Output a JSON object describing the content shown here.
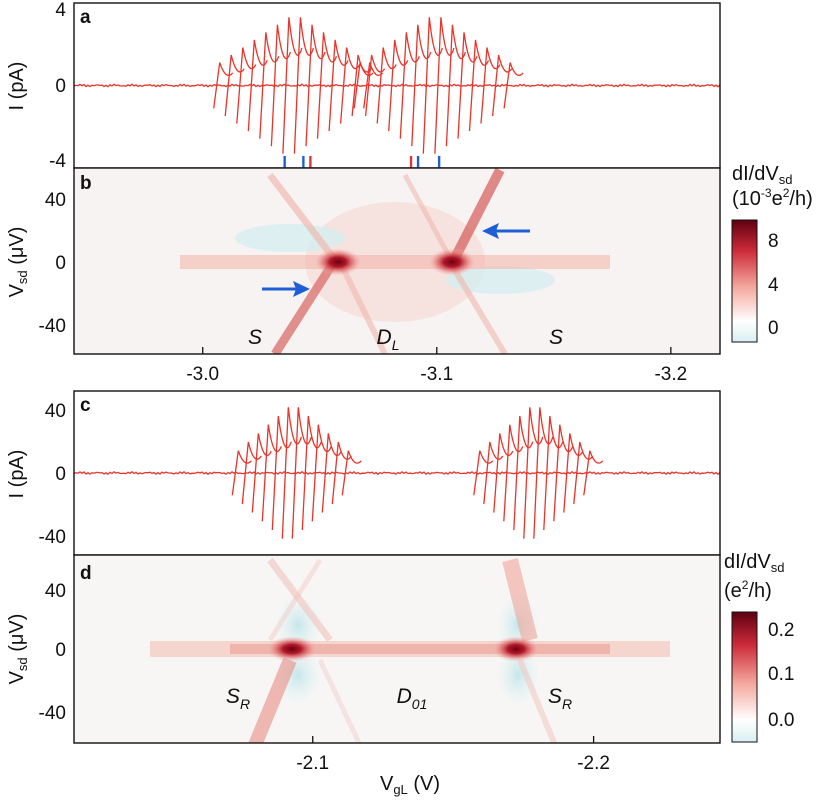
{
  "chart_data": [
    {
      "panel": "a",
      "type": "line",
      "ylabel": "I (pA)",
      "yticks": [
        "4",
        "0",
        "-4"
      ],
      "ylim": [
        -4.3,
        4.3
      ],
      "xlim": [
        -2.945,
        -3.221
      ],
      "color": "#e8342a",
      "description_values": {
        "resonance_centers_V": [
          -3.038,
          -3.098
        ],
        "max_abs_current_pA": 4.3,
        "baseline_current_pA": 0
      },
      "markers": [
        {
          "x": -3.035,
          "color": "#1f5fd6"
        },
        {
          "x": -3.043,
          "color": "#1f5fd6"
        },
        {
          "x": -3.046,
          "color": "#d63a3a"
        },
        {
          "x": -3.089,
          "color": "#d63a3a"
        },
        {
          "x": -3.092,
          "color": "#1f5fd6"
        },
        {
          "x": -3.101,
          "color": "#1f5fd6"
        }
      ]
    },
    {
      "panel": "b",
      "type": "heatmap",
      "ylabel": "Vsd (μV)",
      "yticks": [
        "40",
        "0",
        "-40"
      ],
      "ylim": [
        -60,
        60
      ],
      "xlim": [
        -2.945,
        -3.221
      ],
      "xticks": [
        "-3.0",
        "-3.1",
        "-3.2"
      ],
      "xtick_values": [
        -3.0,
        -3.1,
        -3.2
      ],
      "colorbar": {
        "title": "dI/dVsd",
        "units": "(10-3e2/h)",
        "ticks": [
          "8",
          "4",
          "0"
        ],
        "range": [
          -2,
          10
        ]
      },
      "annotations": [
        "S",
        "D",
        "S"
      ],
      "annotation_subscripts": [
        "",
        "L",
        ""
      ],
      "hotspots_V": [
        -3.038,
        -3.098
      ]
    },
    {
      "panel": "c",
      "type": "line",
      "ylabel": "I (pA)",
      "yticks": [
        "40",
        "0",
        "-40"
      ],
      "ylim": [
        -55,
        55
      ],
      "xlim": [
        -2.015,
        -2.245
      ],
      "color": "#e8342a",
      "description_values": {
        "resonance_centers_V": [
          -2.092,
          -2.178
        ],
        "max_abs_current_pA": 55
      }
    },
    {
      "panel": "d",
      "type": "heatmap",
      "ylabel": "Vsd (μV)",
      "yticks": [
        "40",
        "0",
        "-40"
      ],
      "ylim": [
        -60,
        60
      ],
      "xlim": [
        -2.015,
        -2.245
      ],
      "xticks": [
        "-2.1",
        "-2.2"
      ],
      "xtick_values": [
        -2.1,
        -2.2
      ],
      "xlabel": "VgL (V)",
      "colorbar": {
        "title": "dI/dVsd",
        "units": "(e2/h)",
        "ticks": [
          "0.2",
          "0.1",
          "0.0"
        ],
        "range": [
          -0.05,
          0.24
        ]
      },
      "annotations": [
        "S",
        "D",
        "S"
      ],
      "annotation_subscripts": [
        "R",
        "01",
        "R"
      ],
      "hotspots_V": [
        -2.092,
        -2.178
      ]
    }
  ]
}
